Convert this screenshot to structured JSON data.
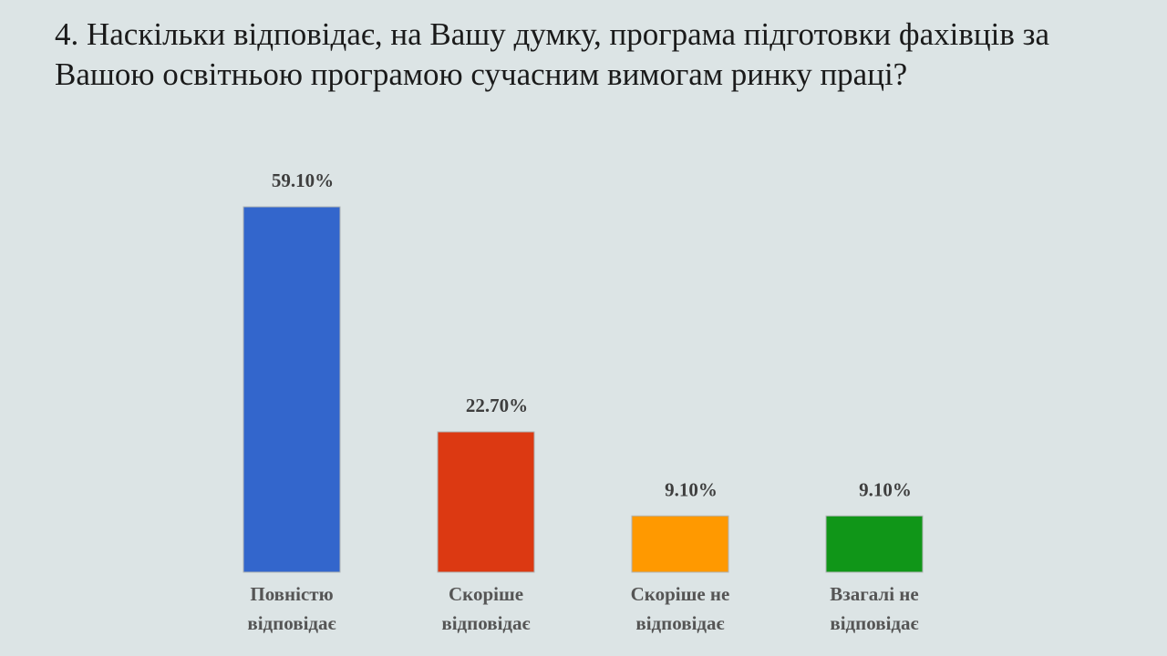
{
  "slide": {
    "title": "4. Наскільки відповідає, на Вашу думку, програма підготовки фахівців за Вашою освітньою програмою сучасним вимогам ринку праці?"
  },
  "chart_data": {
    "type": "bar",
    "categories": [
      "Повністю відповідає",
      "Скоріше відповідає",
      "Скоріше не відповідає",
      "Взагалі не відповідає"
    ],
    "category_lines": [
      [
        "Повністю",
        "відповідає"
      ],
      [
        "Скоріше",
        "відповідає"
      ],
      [
        "Скоріше не",
        "відповідає"
      ],
      [
        "Взагалі не",
        "відповідає"
      ]
    ],
    "values": [
      59.1,
      22.7,
      9.1,
      9.1
    ],
    "data_labels": [
      "59.10%",
      "22.70%",
      "9.10%",
      "9.10%"
    ],
    "colors": [
      "#3366cc",
      "#dc3912",
      "#ff9900",
      "#109618"
    ],
    "ylim": [
      0,
      59.1
    ],
    "grid": false,
    "legend": "none"
  }
}
